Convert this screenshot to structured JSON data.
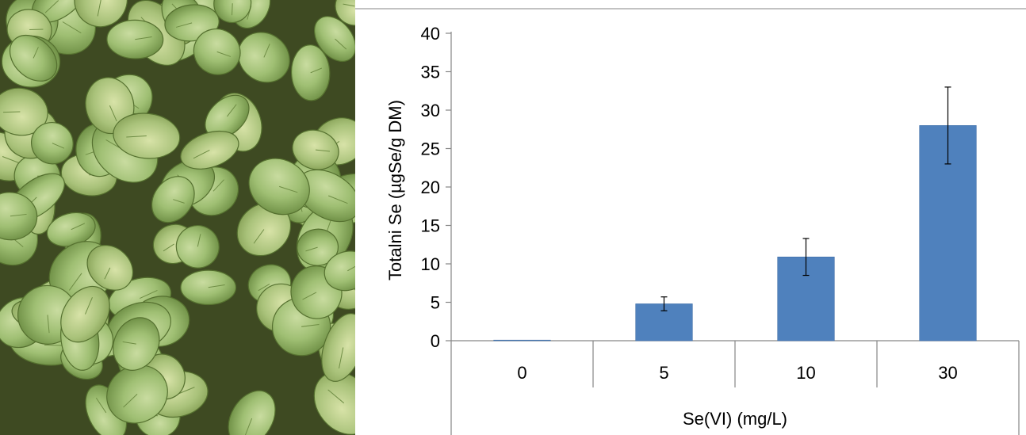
{
  "photo": {
    "subject": "seedlings-photo"
  },
  "colors": {
    "bar": "#4f81bd",
    "bar_edge": "#3f6fa8",
    "axis": "#868686",
    "error_bar": "#000000"
  },
  "chart_data": {
    "type": "bar",
    "categories": [
      "0",
      "5",
      "10",
      "30"
    ],
    "values": [
      0,
      4.8,
      10.9,
      28.0
    ],
    "error": [
      0,
      0.9,
      2.4,
      5.0
    ],
    "xlabel": "Se(VI) (mg/L)",
    "ylabel": "Totalni Se (µgSe/g DM)",
    "ylim": [
      0,
      40
    ],
    "yticks": [
      0,
      5,
      10,
      15,
      20,
      25,
      30,
      35,
      40
    ],
    "grid": false,
    "legend": "none"
  }
}
